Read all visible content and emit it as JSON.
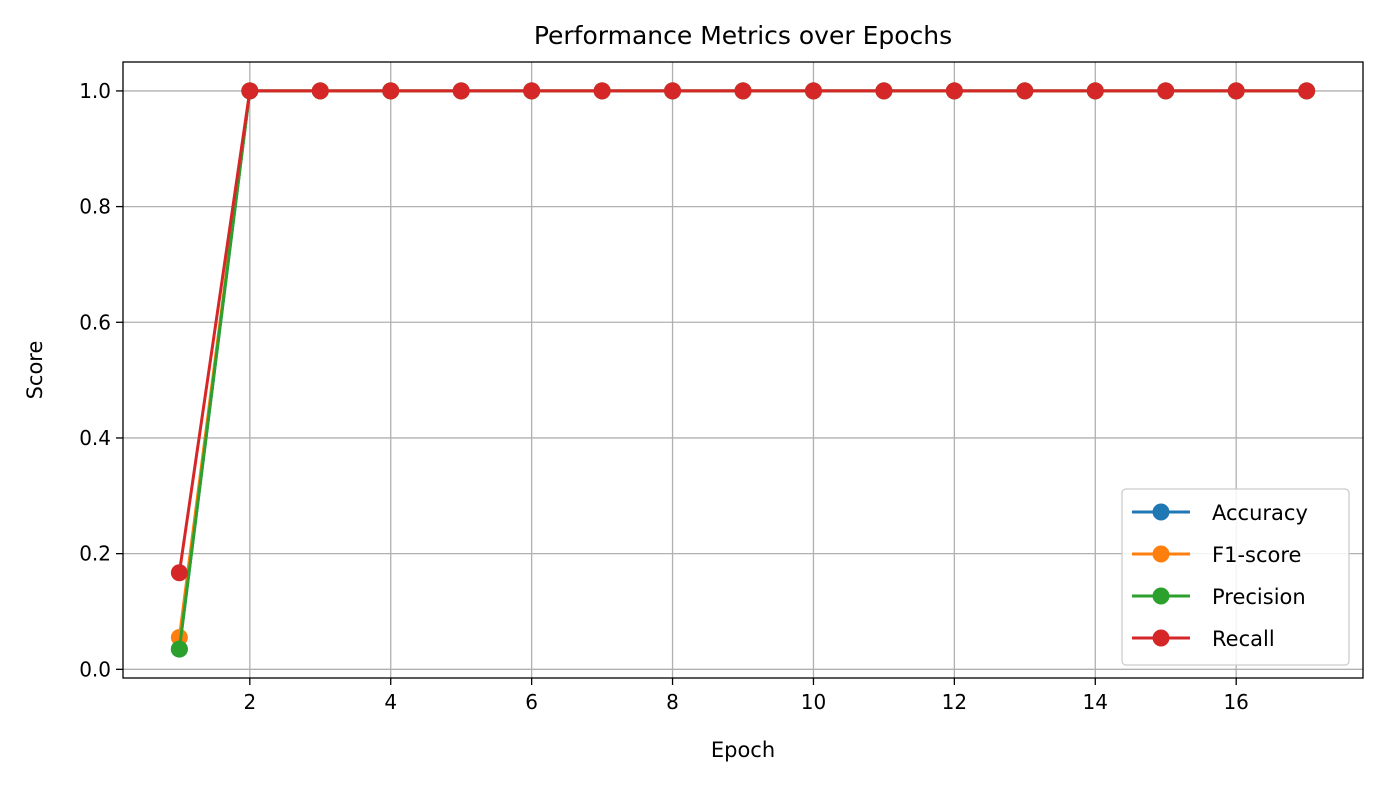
{
  "chart_data": {
    "type": "line",
    "title": "Performance Metrics over Epochs",
    "xlabel": "Epoch",
    "ylabel": "Score",
    "x": [
      1,
      2,
      3,
      4,
      5,
      6,
      7,
      8,
      9,
      10,
      11,
      12,
      13,
      14,
      15,
      16,
      17
    ],
    "xlim": [
      0.2,
      17.8
    ],
    "ylim": [
      -0.015,
      1.05
    ],
    "xticks": [
      2,
      4,
      6,
      8,
      10,
      12,
      14,
      16
    ],
    "xtick_labels": [
      "2",
      "4",
      "6",
      "8",
      "10",
      "12",
      "14",
      "16"
    ],
    "yticks": [
      0.0,
      0.2,
      0.4,
      0.6,
      0.8,
      1.0
    ],
    "ytick_labels": [
      "0.0",
      "0.2",
      "0.4",
      "0.6",
      "0.8",
      "1.0"
    ],
    "grid": true,
    "legend_position": "lower-right",
    "series": [
      {
        "name": "Accuracy",
        "color": "#1f77b4",
        "values": [
          0.035,
          1,
          1,
          1,
          1,
          1,
          1,
          1,
          1,
          1,
          1,
          1,
          1,
          1,
          1,
          1,
          1
        ]
      },
      {
        "name": "F1-score",
        "color": "#ff7f0e",
        "values": [
          0.055,
          1,
          1,
          1,
          1,
          1,
          1,
          1,
          1,
          1,
          1,
          1,
          1,
          1,
          1,
          1,
          1
        ]
      },
      {
        "name": "Precision",
        "color": "#2ca02c",
        "values": [
          0.035,
          1,
          1,
          1,
          1,
          1,
          1,
          1,
          1,
          1,
          1,
          1,
          1,
          1,
          1,
          1,
          1
        ]
      },
      {
        "name": "Recall",
        "color": "#d62728",
        "values": [
          0.167,
          1,
          1,
          1,
          1,
          1,
          1,
          1,
          1,
          1,
          1,
          1,
          1,
          1,
          1,
          1,
          1
        ]
      }
    ]
  }
}
